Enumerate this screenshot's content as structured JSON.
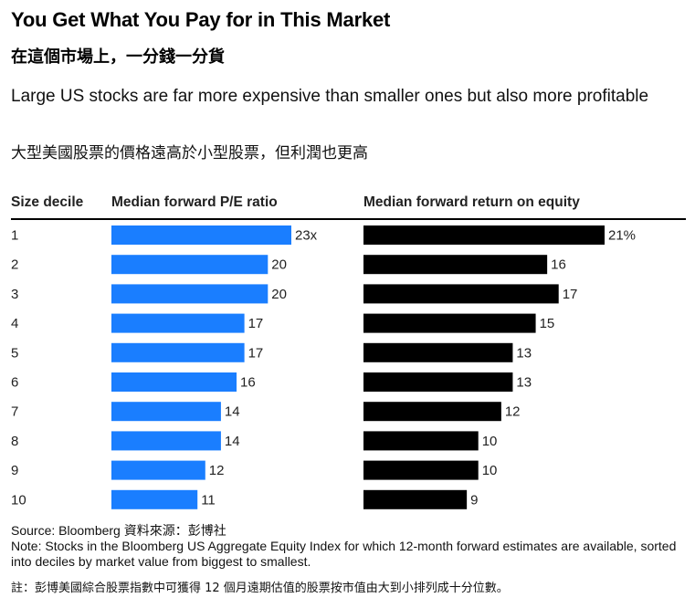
{
  "title": "You Get What You Pay for in This Market",
  "title_zh": "在這個市場上，一分錢一分貨",
  "subtitle": "Large US stocks are far more expensive than smaller ones but also more profitable",
  "subtitle_zh": "大型美國股票的價格遠高於小型股票，但利潤也更高",
  "columns": {
    "decile": "Size decile",
    "pe": "Median forward P/E ratio",
    "roe": "Median forward return on equity"
  },
  "chart_data": {
    "type": "bar",
    "categories": [
      "1",
      "2",
      "3",
      "4",
      "5",
      "6",
      "7",
      "8",
      "9",
      "10"
    ],
    "series": [
      {
        "name": "Median forward P/E ratio",
        "values": [
          23,
          20,
          20,
          17,
          17,
          16,
          14,
          14,
          12,
          11
        ],
        "labels": [
          "23x",
          "20",
          "20",
          "17",
          "17",
          "16",
          "14",
          "14",
          "12",
          "11"
        ],
        "color": "#1a7eff"
      },
      {
        "name": "Median forward return on equity",
        "values": [
          21,
          16,
          17,
          15,
          13,
          13,
          12,
          10,
          10,
          9
        ],
        "labels": [
          "21%",
          "16",
          "17",
          "15",
          "13",
          "13",
          "12",
          "10",
          "10",
          "9"
        ],
        "color": "#000000"
      }
    ],
    "orientation": "horizontal",
    "grid": false
  },
  "footer": {
    "source": "Source: Bloomberg  資料來源：彭博社",
    "note": "Note: Stocks in the Bloomberg US Aggregate Equity Index for which 12-month forward estimates are available, sorted into deciles by market value from biggest to smallest.",
    "note_zh": "註：彭博美國綜合股票指數中可獲得 12 個月遠期估值的股票按市值由大到小排列成十分位數。"
  }
}
